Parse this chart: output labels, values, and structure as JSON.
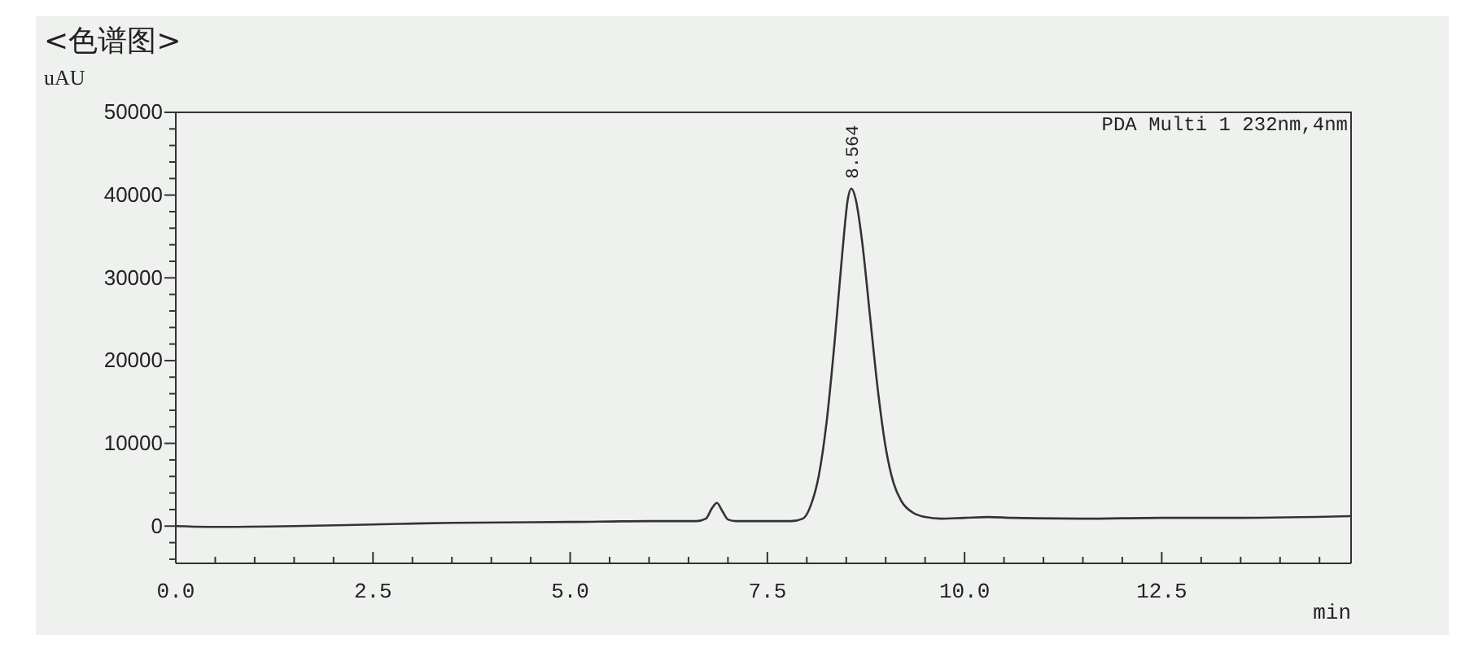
{
  "chart_data": {
    "type": "line",
    "title": "<色谱图>",
    "ylabel": "uAU",
    "xlabel": "min",
    "xlim": [
      0,
      14.9
    ],
    "ylim": [
      -4500,
      50000
    ],
    "xticks": [
      {
        "value": 0,
        "label": "0.0"
      },
      {
        "value": 0.5,
        "label": null
      },
      {
        "value": 1,
        "label": null
      },
      {
        "value": 1.5,
        "label": null
      },
      {
        "value": 2,
        "label": null
      },
      {
        "value": 2.5,
        "label": "2.5"
      },
      {
        "value": 3,
        "label": null
      },
      {
        "value": 3.5,
        "label": null
      },
      {
        "value": 4,
        "label": null
      },
      {
        "value": 4.5,
        "label": null
      },
      {
        "value": 5,
        "label": "5.0"
      },
      {
        "value": 5.5,
        "label": null
      },
      {
        "value": 6,
        "label": null
      },
      {
        "value": 6.5,
        "label": null
      },
      {
        "value": 7,
        "label": null
      },
      {
        "value": 7.5,
        "label": "7.5"
      },
      {
        "value": 8,
        "label": null
      },
      {
        "value": 8.5,
        "label": null
      },
      {
        "value": 9,
        "label": null
      },
      {
        "value": 9.5,
        "label": null
      },
      {
        "value": 10,
        "label": "10.0"
      },
      {
        "value": 10.5,
        "label": null
      },
      {
        "value": 11,
        "label": null
      },
      {
        "value": 11.5,
        "label": null
      },
      {
        "value": 12,
        "label": null
      },
      {
        "value": 12.5,
        "label": "12.5"
      },
      {
        "value": 13,
        "label": null
      },
      {
        "value": 13.5,
        "label": null
      },
      {
        "value": 14,
        "label": null
      },
      {
        "value": 14.5,
        "label": null
      }
    ],
    "yticks": [
      {
        "value": -4000,
        "label": null
      },
      {
        "value": -2000,
        "label": null
      },
      0,
      {
        "value": 2000,
        "label": null
      },
      {
        "value": 4000,
        "label": null
      },
      {
        "value": 6000,
        "label": null
      },
      {
        "value": 8000,
        "label": null
      },
      10000,
      {
        "value": 12000,
        "label": null
      },
      {
        "value": 14000,
        "label": null
      },
      {
        "value": 16000,
        "label": null
      },
      {
        "value": 18000,
        "label": null
      },
      20000,
      {
        "value": 22000,
        "label": null
      },
      {
        "value": 24000,
        "label": null
      },
      {
        "value": 26000,
        "label": null
      },
      {
        "value": 28000,
        "label": null
      },
      30000,
      {
        "value": 32000,
        "label": null
      },
      {
        "value": 34000,
        "label": null
      },
      {
        "value": 36000,
        "label": null
      },
      {
        "value": 38000,
        "label": null
      },
      40000,
      {
        "value": 42000,
        "label": null
      },
      {
        "value": 44000,
        "label": null
      },
      {
        "value": 46000,
        "label": null
      },
      {
        "value": 48000,
        "label": null
      },
      50000
    ],
    "grid": false,
    "marker": "none",
    "line_style": "solid",
    "annotations": [
      "PDA Multi 1 232nm,4nm",
      {
        "text": "8.564",
        "x": 8.564,
        "y": 40800
      }
    ],
    "series": [
      {
        "color": "#333333",
        "x": [
          0,
          0.5,
          1.5,
          2.5,
          3.5,
          5,
          6,
          6.6,
          6.72,
          6.8,
          6.86,
          6.93,
          7,
          7.1,
          7.5,
          7.8,
          7.95,
          8.05,
          8.15,
          8.25,
          8.35,
          8.45,
          8.52,
          8.564,
          8.62,
          8.7,
          8.8,
          8.9,
          9,
          9.1,
          9.2,
          9.35,
          9.5,
          9.7,
          10,
          10.3,
          10.6,
          11.5,
          12.5,
          13.5,
          14.9
        ],
        "values": [
          0,
          -100,
          0,
          200,
          400,
          500,
          600,
          600,
          900,
          2200,
          2800,
          1800,
          800,
          600,
          600,
          600,
          900,
          2500,
          6000,
          12500,
          22000,
          33000,
          39500,
          40800,
          39500,
          34500,
          25500,
          16500,
          9500,
          5200,
          3000,
          1600,
          1100,
          900,
          1000,
          1100,
          1000,
          900,
          1000,
          1000,
          1200
        ]
      }
    ]
  }
}
